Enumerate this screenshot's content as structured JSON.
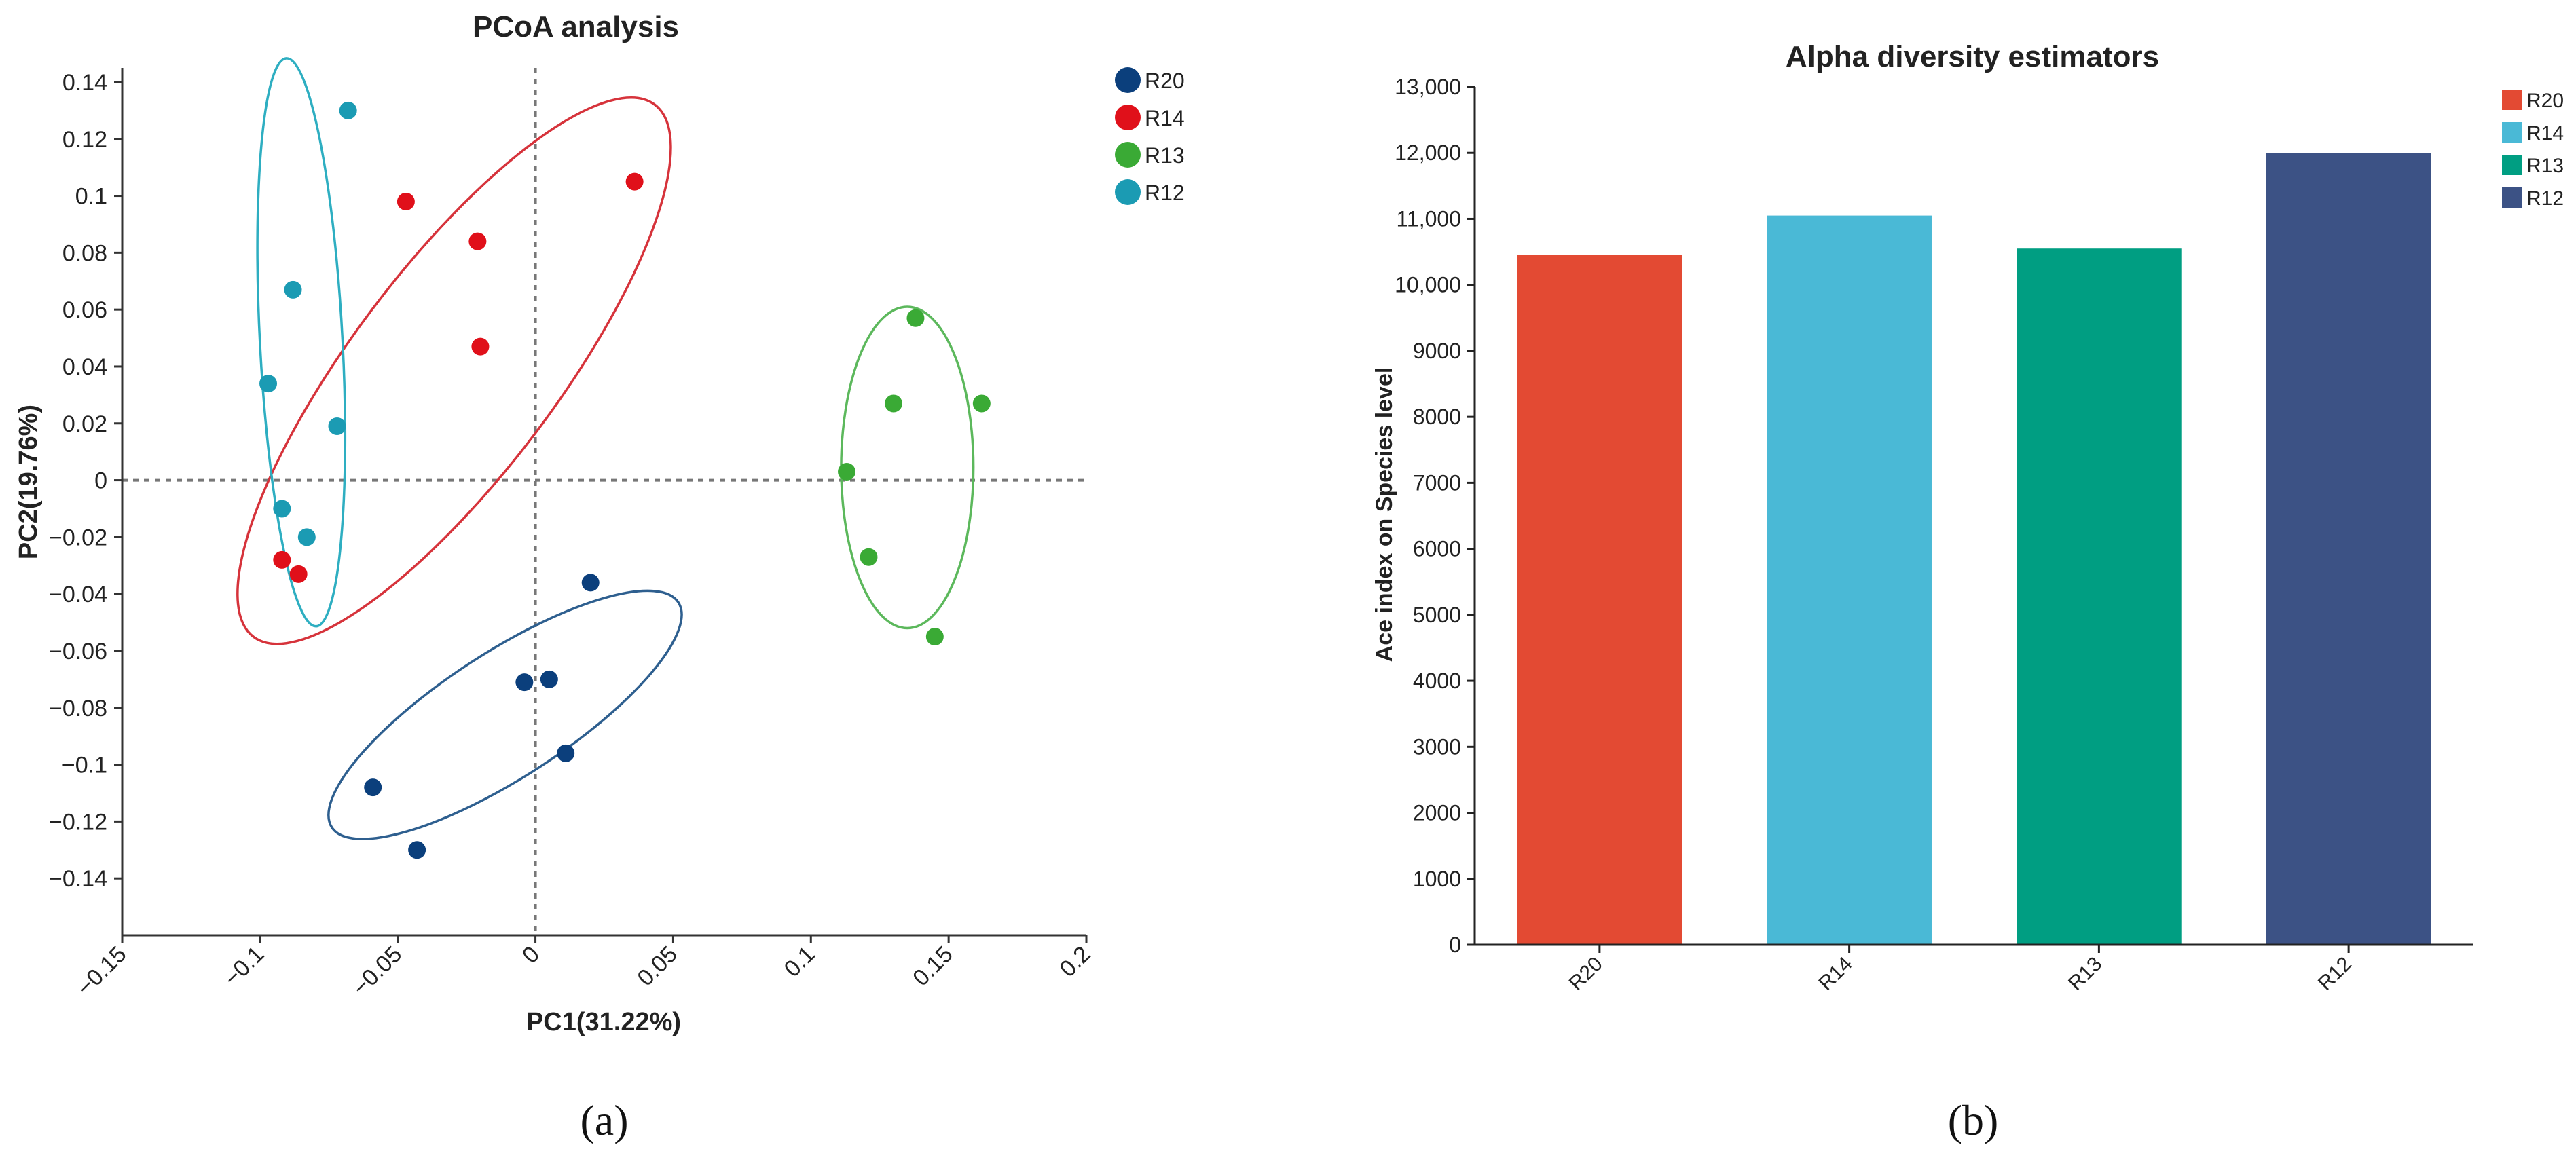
{
  "panels": {
    "a": {
      "caption": "(a)"
    },
    "b": {
      "caption": "(b)"
    }
  },
  "chart_data": [
    {
      "type": "scatter",
      "title": "PCoA analysis",
      "xlabel": "PC1(31.22%)",
      "ylabel": "PC2(19.76%)",
      "xlim": [
        -0.15,
        0.2
      ],
      "ylim": [
        -0.16,
        0.145
      ],
      "xticks": [
        {
          "v": -0.15,
          "label": "−0.15"
        },
        {
          "v": -0.1,
          "label": "−0.1"
        },
        {
          "v": -0.05,
          "label": "−0.05"
        },
        {
          "v": 0,
          "label": "0"
        },
        {
          "v": 0.05,
          "label": "0.05"
        },
        {
          "v": 0.1,
          "label": "0.1"
        },
        {
          "v": 0.15,
          "label": "0.15"
        },
        {
          "v": 0.2,
          "label": "0.2"
        }
      ],
      "yticks": [
        {
          "v": 0.14,
          "label": "0.14"
        },
        {
          "v": 0.12,
          "label": "0.12"
        },
        {
          "v": 0.1,
          "label": "0.1"
        },
        {
          "v": 0.08,
          "label": "0.08"
        },
        {
          "v": 0.06,
          "label": "0.06"
        },
        {
          "v": 0.04,
          "label": "0.04"
        },
        {
          "v": 0.02,
          "label": "0.02"
        },
        {
          "v": 0,
          "label": "0"
        },
        {
          "v": -0.02,
          "label": "−0.02"
        },
        {
          "v": -0.04,
          "label": "−0.04"
        },
        {
          "v": -0.06,
          "label": "−0.06"
        },
        {
          "v": -0.08,
          "label": "−0.08"
        },
        {
          "v": -0.1,
          "label": "−0.1"
        },
        {
          "v": -0.12,
          "label": "−0.12"
        },
        {
          "v": -0.14,
          "label": "−0.14"
        }
      ],
      "legend_position": "top-right",
      "reference_lines": {
        "x": 0,
        "y": 0,
        "style": "dotted"
      },
      "series": [
        {
          "name": "R20",
          "color": "#0b3f7c",
          "ellipse_color": "#2e5f8f",
          "points": [
            [
              0.02,
              -0.036
            ],
            [
              0.005,
              -0.07
            ],
            [
              -0.004,
              -0.071
            ],
            [
              0.011,
              -0.096
            ],
            [
              -0.059,
              -0.108
            ],
            [
              -0.043,
              -0.13
            ]
          ],
          "ellipse": {
            "cx": -0.011,
            "cy": -0.0825,
            "rx": 0.075,
            "ry": 0.022,
            "angle_deg": 33
          }
        },
        {
          "name": "R14",
          "color": "#e0101a",
          "ellipse_color": "#d6333b",
          "points": [
            [
              0.036,
              0.105
            ],
            [
              -0.047,
              0.098
            ],
            [
              -0.021,
              0.084
            ],
            [
              -0.02,
              0.047
            ],
            [
              -0.092,
              -0.028
            ],
            [
              -0.086,
              -0.033
            ]
          ],
          "ellipse": {
            "cx": -0.0295,
            "cy": 0.0385,
            "rx": 0.121,
            "ry": 0.036,
            "angle_deg": 53
          }
        },
        {
          "name": "R13",
          "color": "#3aaa35",
          "ellipse_color": "#5cb85c",
          "points": [
            [
              0.138,
              0.057
            ],
            [
              0.13,
              0.027
            ],
            [
              0.162,
              0.027
            ],
            [
              0.113,
              0.003
            ],
            [
              0.121,
              -0.027
            ],
            [
              0.145,
              -0.055
            ]
          ],
          "ellipse": {
            "cx": 0.135,
            "cy": 0.0045,
            "rx": 0.024,
            "ry": 0.0565,
            "angle_deg": 0
          }
        },
        {
          "name": "R12",
          "color": "#1b9bb3",
          "ellipse_color": "#2eaec1",
          "points": [
            [
              -0.068,
              0.13
            ],
            [
              -0.088,
              0.067
            ],
            [
              -0.097,
              0.034
            ],
            [
              -0.072,
              0.019
            ],
            [
              -0.092,
              -0.01
            ],
            [
              -0.083,
              -0.02
            ]
          ],
          "ellipse": {
            "cx": -0.085,
            "cy": 0.0485,
            "rx": 0.015,
            "ry": 0.1,
            "angle_deg": 3
          }
        }
      ]
    },
    {
      "type": "bar",
      "title": "Alpha diversity estimators",
      "xlabel": "",
      "ylabel": "Ace index on Species level",
      "ylim": [
        0,
        13000
      ],
      "yticks": [
        {
          "v": 0,
          "label": "0"
        },
        {
          "v": 1000,
          "label": "1000"
        },
        {
          "v": 2000,
          "label": "2000"
        },
        {
          "v": 3000,
          "label": "3000"
        },
        {
          "v": 4000,
          "label": "4000"
        },
        {
          "v": 5000,
          "label": "5000"
        },
        {
          "v": 6000,
          "label": "6000"
        },
        {
          "v": 7000,
          "label": "7000"
        },
        {
          "v": 8000,
          "label": "8000"
        },
        {
          "v": 9000,
          "label": "9000"
        },
        {
          "v": 10000,
          "label": "10,000"
        },
        {
          "v": 11000,
          "label": "11,000"
        },
        {
          "v": 12000,
          "label": "12,000"
        },
        {
          "v": 13000,
          "label": "13,000"
        }
      ],
      "categories": [
        "R20",
        "R14",
        "R13",
        "R12"
      ],
      "values": [
        10450,
        11050,
        10550,
        12000
      ],
      "colors": [
        "#e34a33",
        "#4ab9d6",
        "#009e82",
        "#3c5285"
      ],
      "legend_position": "top-right",
      "legend": [
        {
          "name": "R20",
          "color": "#e34a33"
        },
        {
          "name": "R14",
          "color": "#4ab9d6"
        },
        {
          "name": "R13",
          "color": "#009e82"
        },
        {
          "name": "R12",
          "color": "#3c5285"
        }
      ]
    }
  ]
}
